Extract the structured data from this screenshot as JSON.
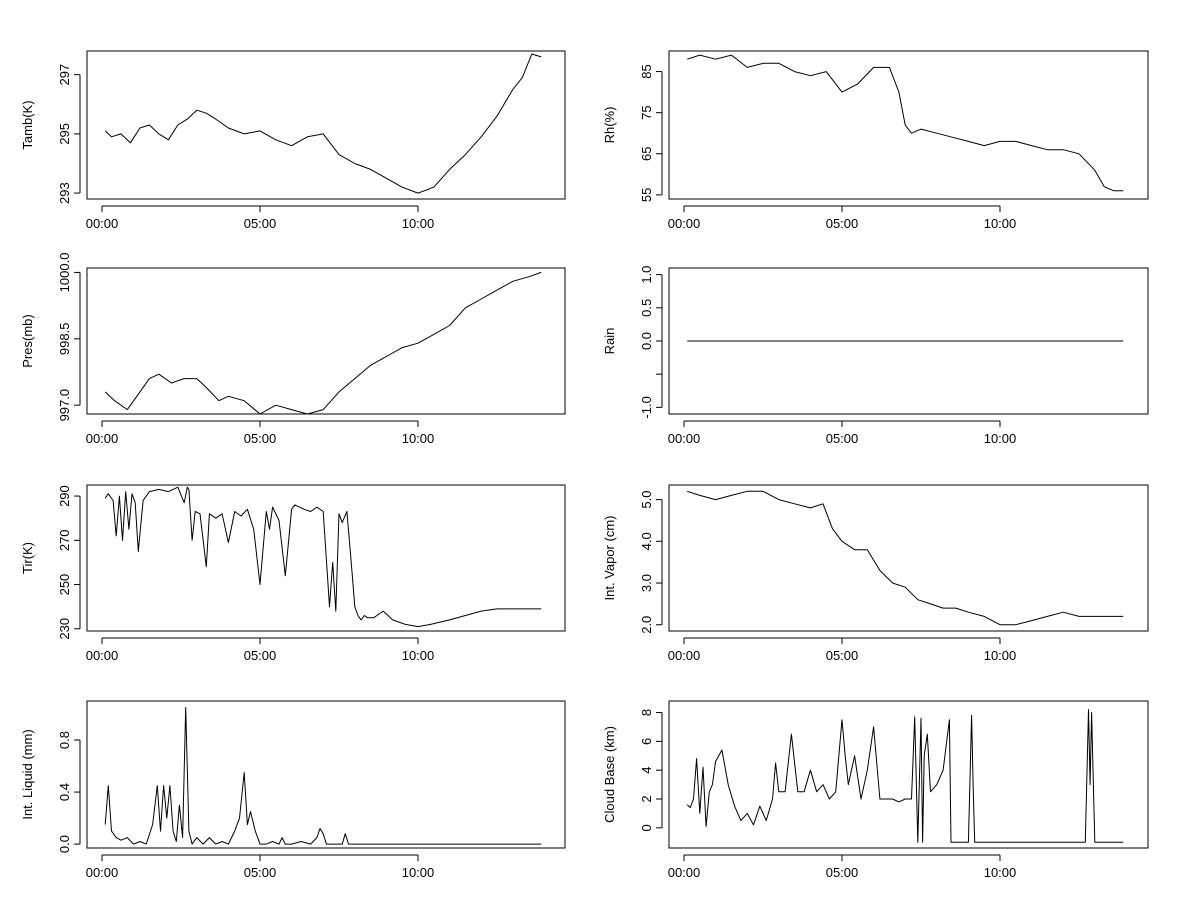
{
  "chart_data": [
    {
      "type": "line",
      "ylabel": "Tamb(K)",
      "xticks": [
        "00:00",
        "05:00",
        "10:00"
      ],
      "xlim": [
        0,
        14
      ],
      "ylim": [
        292.8,
        297.8
      ],
      "yticks": [
        293,
        295,
        297
      ],
      "yticklabels": [
        "293",
        "295",
        "297"
      ],
      "series": [
        {
          "x": [
            0.1,
            0.3,
            0.6,
            0.9,
            1.2,
            1.5,
            1.8,
            2.1,
            2.4,
            2.7,
            3.0,
            3.3,
            3.6,
            4.0,
            4.5,
            5.0,
            5.5,
            6.0,
            6.5,
            7.0,
            7.5,
            8.0,
            8.5,
            9.0,
            9.5,
            10.0,
            10.5,
            11.0,
            11.5,
            12.0,
            12.5,
            13.0,
            13.3,
            13.6,
            13.9
          ],
          "y": [
            295.1,
            294.9,
            295.0,
            294.7,
            295.2,
            295.3,
            295.0,
            294.8,
            295.3,
            295.5,
            295.8,
            295.7,
            295.5,
            295.2,
            295.0,
            295.1,
            294.8,
            294.6,
            294.9,
            295.0,
            294.3,
            294.0,
            293.8,
            293.5,
            293.2,
            293.0,
            293.2,
            293.8,
            294.3,
            294.9,
            295.6,
            296.5,
            296.9,
            297.7,
            297.6
          ]
        }
      ]
    },
    {
      "type": "line",
      "ylabel": "Rh(%)",
      "xticks": [
        "00:00",
        "05:00",
        "10:00"
      ],
      "xlim": [
        0,
        14
      ],
      "ylim": [
        54,
        90
      ],
      "yticks": [
        55,
        65,
        75,
        85
      ],
      "yticklabels": [
        "55",
        "65",
        "75",
        "85"
      ],
      "series": [
        {
          "x": [
            0.1,
            0.5,
            1.0,
            1.5,
            2.0,
            2.5,
            3.0,
            3.5,
            4.0,
            4.5,
            5.0,
            5.5,
            6.0,
            6.5,
            6.8,
            7.0,
            7.2,
            7.5,
            8.0,
            8.5,
            9.0,
            9.5,
            10.0,
            10.5,
            11.0,
            11.5,
            12.0,
            12.5,
            13.0,
            13.3,
            13.6,
            13.9
          ],
          "y": [
            88,
            89,
            88,
            89,
            86,
            87,
            87,
            85,
            84,
            85,
            80,
            82,
            86,
            86,
            80,
            72,
            70,
            71,
            70,
            69,
            68,
            67,
            68,
            68,
            67,
            66,
            66,
            65,
            61,
            57,
            56,
            56
          ]
        }
      ]
    },
    {
      "type": "line",
      "ylabel": "Pres(mb)",
      "xticks": [
        "00:00",
        "05:00",
        "10:00"
      ],
      "xlim": [
        0,
        14
      ],
      "ylim": [
        996.8,
        1000.1
      ],
      "yticks": [
        997.0,
        998.5,
        1000.0
      ],
      "yticklabels": [
        "997.0",
        "998.5",
        "1000.0"
      ],
      "series": [
        {
          "x": [
            0.1,
            0.4,
            0.8,
            1.1,
            1.5,
            1.8,
            2.2,
            2.6,
            3.0,
            3.3,
            3.7,
            4.0,
            4.5,
            5.0,
            5.5,
            6.0,
            6.5,
            7.0,
            7.5,
            8.0,
            8.5,
            9.0,
            9.5,
            10.0,
            10.5,
            11.0,
            11.5,
            12.0,
            12.5,
            13.0,
            13.5,
            13.9
          ],
          "y": [
            997.3,
            997.1,
            996.9,
            997.2,
            997.6,
            997.7,
            997.5,
            997.6,
            997.6,
            997.4,
            997.1,
            997.2,
            997.1,
            996.8,
            997.0,
            996.9,
            996.8,
            996.9,
            997.3,
            997.6,
            997.9,
            998.1,
            998.3,
            998.4,
            998.6,
            998.8,
            999.2,
            999.4,
            999.6,
            999.8,
            999.9,
            1000.0
          ]
        }
      ]
    },
    {
      "type": "line",
      "ylabel": "Rain",
      "xticks": [
        "00:00",
        "05:00",
        "10:00"
      ],
      "xlim": [
        0,
        14
      ],
      "ylim": [
        -1.1,
        1.1
      ],
      "yticks": [
        -1.0,
        -0.5,
        0.0,
        0.5,
        1.0
      ],
      "yticklabels": [
        "-1.0",
        "",
        "0.0",
        "0.5",
        "1.0"
      ],
      "series": [
        {
          "x": [
            0.1,
            13.9
          ],
          "y": [
            0,
            0
          ]
        }
      ]
    },
    {
      "type": "line",
      "ylabel": "Tir(K)",
      "xticks": [
        "00:00",
        "05:00",
        "10:00"
      ],
      "xlim": [
        0,
        14
      ],
      "ylim": [
        229,
        295
      ],
      "yticks": [
        230,
        250,
        270,
        290
      ],
      "yticklabels": [
        "230",
        "250",
        "270",
        "290"
      ],
      "series": [
        {
          "x": [
            0.1,
            0.2,
            0.35,
            0.45,
            0.55,
            0.65,
            0.75,
            0.85,
            0.95,
            1.05,
            1.15,
            1.3,
            1.5,
            1.8,
            2.1,
            2.4,
            2.6,
            2.7,
            2.75,
            2.85,
            2.95,
            3.1,
            3.3,
            3.4,
            3.6,
            3.8,
            4.0,
            4.2,
            4.4,
            4.6,
            4.8,
            5.0,
            5.2,
            5.3,
            5.4,
            5.6,
            5.8,
            6.0,
            6.1,
            6.25,
            6.4,
            6.6,
            6.8,
            7.0,
            7.2,
            7.3,
            7.4,
            7.5,
            7.6,
            7.75,
            7.9,
            8.0,
            8.1,
            8.2,
            8.3,
            8.4,
            8.6,
            8.9,
            9.2,
            9.6,
            10.0,
            10.4,
            11.0,
            11.5,
            12.0,
            12.5,
            13.0,
            13.5,
            13.9
          ],
          "y": [
            289,
            291,
            288,
            272,
            290,
            270,
            292,
            275,
            291,
            287,
            265,
            288,
            292,
            293,
            292,
            294,
            287,
            294,
            293,
            270,
            283,
            282,
            258,
            282,
            280,
            282,
            269,
            283,
            281,
            284,
            275,
            250,
            283,
            275,
            285,
            279,
            254,
            284,
            286,
            285,
            284,
            283,
            285,
            283,
            240,
            260,
            238,
            282,
            278,
            283,
            258,
            240,
            236,
            234,
            236,
            235,
            235,
            238,
            234,
            232,
            231,
            232,
            234,
            236,
            238,
            239,
            239,
            239,
            239
          ]
        }
      ]
    },
    {
      "type": "line",
      "ylabel": "Int. Vapor (cm)",
      "xticks": [
        "00:00",
        "05:00",
        "10:00"
      ],
      "xlim": [
        0,
        14
      ],
      "ylim": [
        1.85,
        5.35
      ],
      "yticks": [
        2.0,
        3.0,
        4.0,
        5.0
      ],
      "yticklabels": [
        "2.0",
        "3.0",
        "4.0",
        "5.0"
      ],
      "series": [
        {
          "x": [
            0.1,
            0.5,
            1.0,
            1.5,
            2.0,
            2.5,
            3.0,
            3.5,
            4.0,
            4.4,
            4.7,
            5.0,
            5.4,
            5.8,
            6.2,
            6.6,
            7.0,
            7.4,
            7.8,
            8.2,
            8.6,
            9.0,
            9.5,
            10.0,
            10.5,
            11.0,
            11.5,
            12.0,
            12.5,
            13.0,
            13.5,
            13.9
          ],
          "y": [
            5.2,
            5.1,
            5.0,
            5.1,
            5.2,
            5.2,
            5.0,
            4.9,
            4.8,
            4.9,
            4.3,
            4.0,
            3.8,
            3.8,
            3.3,
            3.0,
            2.9,
            2.6,
            2.5,
            2.4,
            2.4,
            2.3,
            2.2,
            2.0,
            2.0,
            2.1,
            2.2,
            2.3,
            2.2,
            2.2,
            2.2,
            2.2
          ]
        }
      ]
    },
    {
      "type": "line",
      "ylabel": "Int. Liquid (mm)",
      "xticks": [
        "00:00",
        "05:00",
        "10:00"
      ],
      "xlim": [
        0,
        14
      ],
      "ylim": [
        -0.03,
        1.1
      ],
      "yticks": [
        0.0,
        0.4,
        0.8
      ],
      "yticklabels": [
        "0.0",
        "0.4",
        "0.8"
      ],
      "series": [
        {
          "x": [
            0.1,
            0.2,
            0.3,
            0.45,
            0.6,
            0.8,
            1.0,
            1.2,
            1.4,
            1.6,
            1.75,
            1.85,
            1.95,
            2.05,
            2.15,
            2.25,
            2.35,
            2.45,
            2.55,
            2.65,
            2.75,
            2.85,
            3.0,
            3.2,
            3.4,
            3.6,
            3.8,
            4.0,
            4.2,
            4.35,
            4.5,
            4.6,
            4.7,
            4.85,
            5.0,
            5.2,
            5.4,
            5.6,
            5.7,
            5.8,
            6.0,
            6.3,
            6.6,
            6.8,
            6.9,
            7.0,
            7.1,
            7.3,
            7.6,
            7.7,
            7.8,
            8.0,
            8.2,
            9.0,
            10.0,
            11.0,
            12.0,
            13.0,
            13.9
          ],
          "y": [
            0.15,
            0.45,
            0.1,
            0.05,
            0.03,
            0.05,
            0.0,
            0.02,
            0.0,
            0.15,
            0.45,
            0.1,
            0.45,
            0.2,
            0.45,
            0.1,
            0.02,
            0.3,
            0.05,
            1.05,
            0.1,
            0.0,
            0.05,
            0.0,
            0.05,
            0.0,
            0.02,
            0.0,
            0.1,
            0.2,
            0.55,
            0.15,
            0.25,
            0.1,
            0.0,
            0.0,
            0.02,
            0.0,
            0.05,
            0.0,
            0.0,
            0.02,
            0.0,
            0.05,
            0.12,
            0.08,
            0.0,
            0.0,
            0.0,
            0.08,
            0.0,
            0.0,
            0.0,
            0.0,
            0.0,
            0.0,
            0.0,
            0.0,
            0.0
          ]
        }
      ]
    },
    {
      "type": "line",
      "ylabel": "Cloud Base (km)",
      "xticks": [
        "00:00",
        "05:00",
        "10:00"
      ],
      "xlim": [
        0,
        14
      ],
      "ylim": [
        -1.4,
        8.8
      ],
      "yticks": [
        0,
        2,
        4,
        6,
        8
      ],
      "yticklabels": [
        "0",
        "2",
        "4",
        "6",
        "8"
      ],
      "series": [
        {
          "x": [
            0.1,
            0.2,
            0.3,
            0.4,
            0.5,
            0.6,
            0.7,
            0.8,
            0.9,
            1.0,
            1.2,
            1.4,
            1.6,
            1.8,
            2.0,
            2.2,
            2.4,
            2.6,
            2.8,
            2.9,
            3.0,
            3.2,
            3.4,
            3.6,
            3.8,
            4.0,
            4.2,
            4.4,
            4.6,
            4.8,
            5.0,
            5.1,
            5.2,
            5.4,
            5.6,
            5.8,
            6.0,
            6.2,
            6.4,
            6.6,
            6.8,
            7.0,
            7.2,
            7.3,
            7.4,
            7.5,
            7.55,
            7.6,
            7.7,
            7.8,
            8.0,
            8.2,
            8.4,
            8.45,
            8.5,
            8.6,
            9.0,
            9.1,
            9.15,
            9.2,
            9.3,
            10.0,
            11.0,
            12.0,
            12.7,
            12.8,
            12.85,
            12.9,
            13.0,
            13.5,
            13.9
          ],
          "y": [
            1.6,
            1.4,
            2.0,
            4.8,
            1.0,
            4.2,
            0.1,
            2.5,
            3.0,
            4.6,
            5.4,
            3.0,
            1.5,
            0.5,
            1.0,
            0.2,
            1.5,
            0.5,
            2.0,
            4.5,
            2.5,
            2.5,
            6.5,
            2.5,
            2.5,
            4.0,
            2.5,
            3.0,
            2.0,
            2.5,
            7.5,
            5.0,
            3.0,
            5.0,
            2.0,
            4.0,
            7.0,
            2.0,
            2.0,
            2.0,
            1.8,
            2.0,
            2.0,
            7.7,
            -1.0,
            7.6,
            -1.0,
            5.0,
            6.5,
            2.5,
            3.0,
            4.0,
            7.5,
            -1.0,
            -1.0,
            -1.0,
            -1.0,
            7.8,
            3.0,
            -1.0,
            -1.0,
            -1.0,
            -1.0,
            -1.0,
            -1.0,
            8.2,
            3.0,
            8.0,
            -1.0,
            -1.0,
            -1.0
          ]
        }
      ]
    }
  ]
}
